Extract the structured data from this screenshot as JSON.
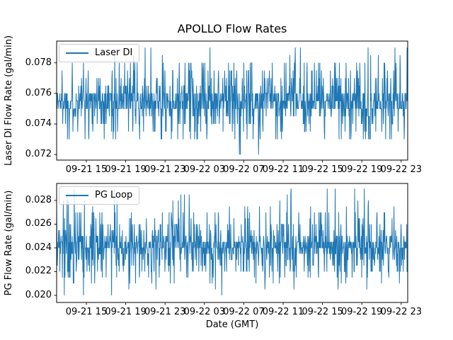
{
  "title": "APOLLO Flow Rates",
  "xlabel": "Date (GMT)",
  "accent_color": "#1f77b4",
  "chart_data": [
    {
      "type": "line",
      "series_name": "Laser DI",
      "legend": "Laser DI",
      "legend_position": "upper left",
      "ylabel": "Laser DI Flow Rate (gal/min)",
      "x_tick_labels": [
        "09-21 15",
        "09-21 19",
        "09-21 23",
        "09-22 03",
        "09-22 07",
        "09-22 11",
        "09-22 15",
        "09-22 19",
        "09-22 23"
      ],
      "y_ticks": [
        0.072,
        0.074,
        0.076,
        0.078
      ],
      "y_tick_labels": [
        "0.072",
        "0.074",
        "0.076",
        "0.078"
      ],
      "ylim": [
        0.07164,
        0.07942
      ],
      "grid": false,
      "line_color": "#1f77b4",
      "noise_profile": {
        "n_points": 1100,
        "seed": 1337,
        "levels": [
          0.072,
          0.0725,
          0.073,
          0.0735,
          0.074,
          0.0745,
          0.075,
          0.0755,
          0.076,
          0.0765,
          0.077,
          0.0775,
          0.078,
          0.0785,
          0.079
        ],
        "weights": [
          0.004,
          0.004,
          0.03,
          0.03,
          0.055,
          0.055,
          0.21,
          0.21,
          0.21,
          0.05,
          0.05,
          0.03,
          0.045,
          0.004,
          0.008
        ]
      }
    },
    {
      "type": "line",
      "series_name": "PG Loop",
      "legend": "PG Loop",
      "legend_position": "upper left",
      "ylabel": "PG Flow Rate (gal/min)",
      "x_tick_labels": [
        "09-21 15",
        "09-21 19",
        "09-21 23",
        "09-22 03",
        "09-22 07",
        "09-22 11",
        "09-22 15",
        "09-22 19",
        "09-22 23"
      ],
      "y_ticks": [
        0.02,
        0.022,
        0.024,
        0.026,
        0.028
      ],
      "y_tick_labels": [
        "0.020",
        "0.022",
        "0.024",
        "0.026",
        "0.028"
      ],
      "ylim": [
        0.0194,
        0.02943
      ],
      "grid": false,
      "line_color": "#1f77b4",
      "noise_profile": {
        "n_points": 1100,
        "seed": 7331,
        "levels": [
          0.02,
          0.0205,
          0.021,
          0.0215,
          0.022,
          0.0225,
          0.023,
          0.0235,
          0.024,
          0.0245,
          0.025,
          0.0255,
          0.026,
          0.0265,
          0.027,
          0.0275,
          0.028,
          0.0285,
          0.029
        ],
        "weights": [
          0.004,
          0.006,
          0.02,
          0.03,
          0.05,
          0.05,
          0.05,
          0.1,
          0.22,
          0.22,
          0.1,
          0.03,
          0.04,
          0.025,
          0.025,
          0.008,
          0.006,
          0.004,
          0.012
        ]
      }
    }
  ]
}
